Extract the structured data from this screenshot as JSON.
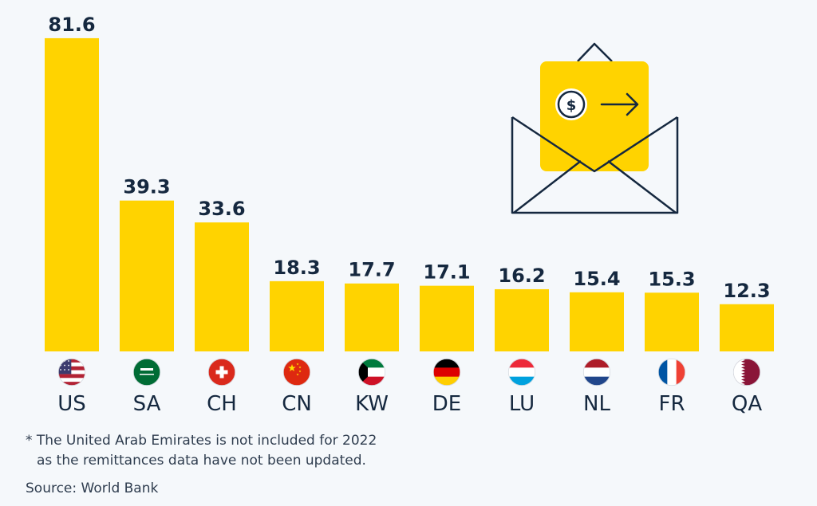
{
  "chart_data": {
    "type": "bar",
    "categories": [
      "US",
      "SA",
      "CH",
      "CN",
      "KW",
      "DE",
      "LU",
      "NL",
      "FR",
      "QA"
    ],
    "values": [
      81.6,
      39.3,
      33.6,
      18.3,
      17.7,
      17.1,
      16.2,
      15.4,
      15.3,
      12.3
    ],
    "value_labels": [
      "81.6",
      "39.3",
      "33.6",
      "18.3",
      "17.7",
      "17.1",
      "16.2",
      "15.4",
      "15.3",
      "12.3"
    ],
    "flags": [
      "us-flag-icon",
      "sa-flag-icon",
      "ch-flag-icon",
      "cn-flag-icon",
      "kw-flag-icon",
      "de-flag-icon",
      "lu-flag-icon",
      "nl-flag-icon",
      "fr-flag-icon",
      "qa-flag-icon"
    ],
    "ylim": [
      0,
      82
    ],
    "grid": false,
    "legend": "none",
    "bar_color": "#ffd300",
    "text_color": "#15283f"
  },
  "illustration": {
    "icon": "envelope-money-icon",
    "symbol": "$"
  },
  "footnote": {
    "line1": "* The United Arab Emirates is not included for 2022",
    "line2": "as the remittances data have not been updated."
  },
  "source": "Source: World Bank"
}
